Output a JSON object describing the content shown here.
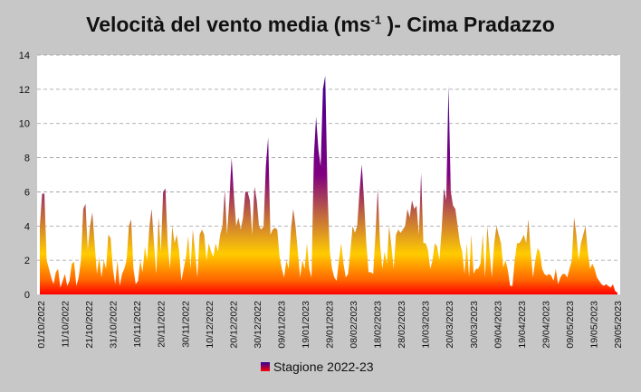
{
  "chart_data": {
    "type": "area",
    "title_main": "Velocità del vento media (ms",
    "title_sup": "-1",
    "title_end": " )- Cima Pradazzo",
    "xlabel": "",
    "ylabel": "",
    "ylim": [
      0,
      14
    ],
    "yticks": [
      0,
      2,
      4,
      6,
      8,
      10,
      12,
      14
    ],
    "grid": true,
    "legend_position": "bottom",
    "gradient_colors": [
      "#ff0000",
      "#ff6600",
      "#ffcc00",
      "#800080",
      "#330099"
    ],
    "x_tick_labels": [
      "01/10/2022",
      "11/10/2022",
      "21/10/2022",
      "31/10/2022",
      "10/11/2022",
      "20/11/2022",
      "30/11/2022",
      "10/12/2022",
      "20/12/2022",
      "30/12/2022",
      "09/01/2023",
      "19/01/2023",
      "29/01/2023",
      "08/02/2023",
      "18/02/2023",
      "28/02/2023",
      "10/03/2023",
      "20/03/2023",
      "30/03/2023",
      "09/04/2023",
      "19/04/2023",
      "29/04/2023",
      "09/05/2023",
      "19/05/2023",
      "29/05/2023"
    ],
    "series": [
      {
        "name": "Stagione 2022-23",
        "values": [
          4.0,
          5.9,
          5.9,
          2.0,
          1.5,
          1.0,
          0.6,
          1.3,
          1.5,
          0.4,
          0.8,
          1.2,
          0.5,
          0.8,
          1.8,
          1.9,
          0.5,
          1.0,
          2.0,
          5.0,
          5.3,
          2.6,
          4.0,
          4.8,
          3.0,
          1.2,
          2.2,
          1.0,
          2.0,
          1.5,
          3.5,
          3.3,
          1.5,
          0.6,
          2.0,
          0.5,
          1.2,
          1.5,
          2.0,
          4.0,
          4.4,
          1.5,
          0.6,
          0.8,
          2.0,
          1.3,
          2.8,
          2.0,
          4.0,
          5.0,
          3.0,
          1.2,
          4.5,
          2.5,
          6.0,
          6.2,
          3.0,
          1.5,
          4.0,
          3.0,
          3.5,
          2.5,
          0.8,
          1.5,
          2.2,
          3.4,
          1.5,
          3.8,
          2.5,
          1.0,
          3.5,
          3.8,
          3.5,
          2.0,
          3.0,
          2.5,
          2.2,
          3.0,
          2.5,
          3.5,
          4.0,
          6.1,
          3.5,
          5.5,
          8.0,
          5.8,
          4.0,
          4.5,
          3.8,
          4.5,
          6.0,
          6.0,
          5.5,
          3.5,
          6.3,
          5.5,
          4.0,
          3.8,
          4.0,
          7.5,
          9.2,
          3.5,
          3.8,
          3.9,
          3.8,
          2.2,
          1.5,
          1.0,
          2.0,
          1.5,
          3.8,
          5.0,
          4.0,
          2.5,
          1.0,
          2.0,
          1.5,
          3.0,
          1.5,
          1.0,
          8.0,
          10.4,
          8.5,
          7.5,
          12.0,
          12.8,
          6.0,
          2.5,
          1.5,
          1.0,
          0.8,
          2.0,
          3.0,
          1.8,
          1.0,
          1.2,
          2.5,
          4.0,
          3.6,
          4.0,
          6.0,
          7.6,
          5.5,
          3.0,
          1.3,
          1.3,
          1.2,
          3.5,
          6.2,
          3.0,
          1.5,
          2.5,
          1.8,
          4.0,
          2.8,
          1.5,
          3.5,
          3.8,
          3.6,
          3.8,
          4.0,
          5.0,
          4.5,
          5.5,
          5.0,
          5.2,
          3.5,
          7.1,
          3.0,
          3.0,
          2.6,
          1.5,
          2.0,
          3.0,
          2.8,
          2.0,
          3.8,
          6.2,
          5.5,
          12.2,
          6.0,
          5.2,
          5.0,
          4.0,
          3.0,
          2.5,
          1.2,
          3.0,
          1.0,
          3.5,
          1.2,
          1.5,
          1.5,
          1.8,
          3.5,
          1.0,
          4.0,
          2.5,
          1.0,
          3.0,
          4.0,
          3.5,
          3.0,
          1.6,
          2.0,
          1.4,
          0.5,
          0.5,
          2.0,
          3.0,
          3.0,
          3.2,
          3.5,
          3.0,
          4.4,
          2.5,
          1.0,
          2.0,
          2.7,
          2.5,
          1.5,
          1.2,
          1.1,
          1.2,
          1.1,
          0.8,
          1.5,
          0.6,
          1.0,
          1.2,
          1.2,
          1.0,
          1.5,
          2.0,
          4.5,
          3.5,
          2.0,
          3.0,
          3.5,
          4.0,
          2.5,
          1.5,
          1.8,
          1.5,
          1.0,
          0.8,
          0.6,
          0.5,
          0.6,
          0.5,
          0.4,
          0.6,
          0.2,
          0.1
        ]
      }
    ]
  }
}
